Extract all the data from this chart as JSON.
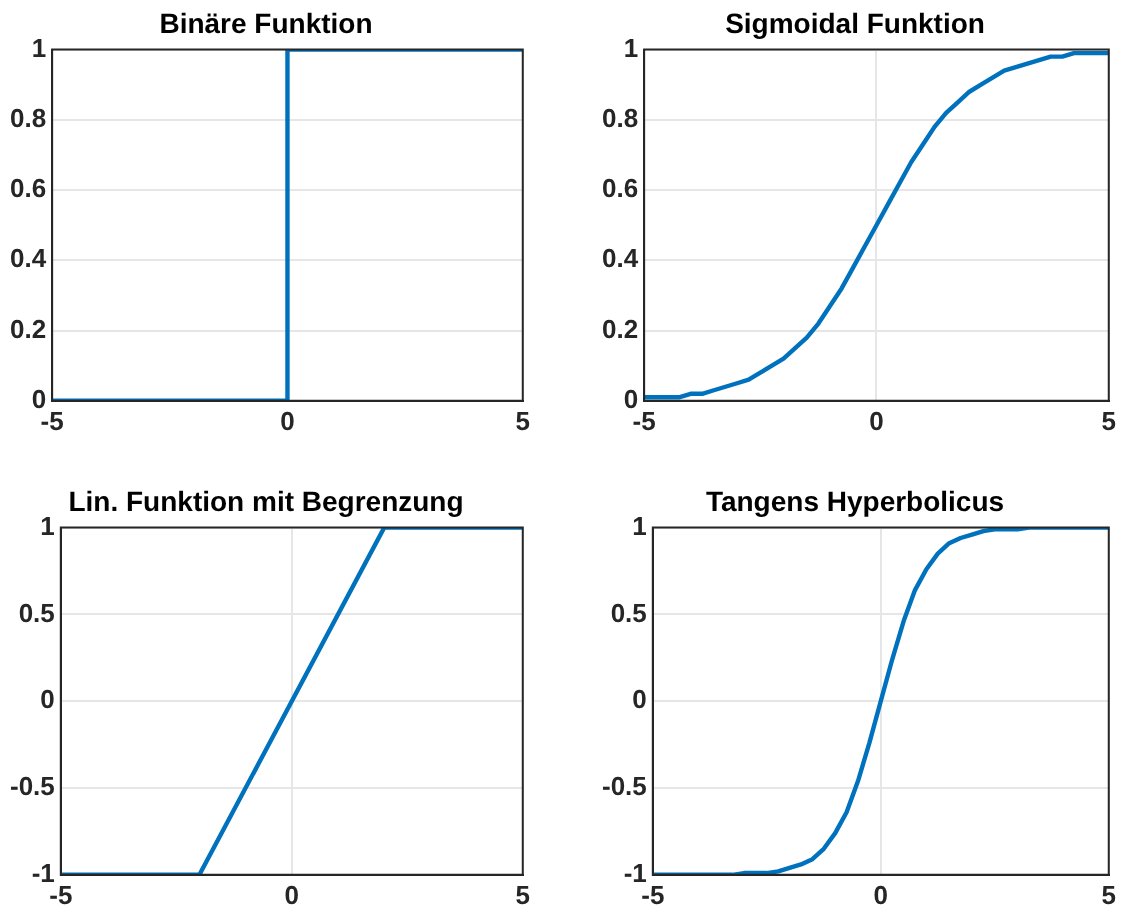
{
  "chart_data": [
    {
      "type": "line",
      "title": "Binäre Funktion",
      "x": [
        -5,
        0,
        0,
        5
      ],
      "series": [
        {
          "color": "#0072bd",
          "values": [
            0,
            0,
            1,
            1
          ]
        }
      ],
      "xlim": [
        -5,
        5
      ],
      "xticks": [
        -5,
        0,
        5
      ],
      "ylim": [
        0,
        1
      ],
      "yticks": [
        0,
        0.2,
        0.4,
        0.6,
        0.8,
        1
      ],
      "grid": true,
      "legend": false,
      "marker": "none"
    },
    {
      "type": "line",
      "title": "Sigmoidal Funktion",
      "x": [
        -5,
        -4.75,
        -4.5,
        -4.25,
        -4,
        -3.75,
        -3.5,
        -3.25,
        -3,
        -2.75,
        -2.5,
        -2.25,
        -2,
        -1.75,
        -1.5,
        -1.25,
        -1,
        -0.75,
        -0.5,
        -0.25,
        0,
        0.25,
        0.5,
        0.75,
        1,
        1.25,
        1.5,
        1.75,
        2,
        2.25,
        2.5,
        2.75,
        3,
        3.25,
        3.5,
        3.75,
        4,
        4.25,
        4.5,
        4.75,
        5
      ],
      "series": [
        {
          "color": "#0072bd",
          "values": [
            0.01,
            0.01,
            0.01,
            0.01,
            0.02,
            0.02,
            0.03,
            0.04,
            0.05,
            0.06,
            0.08,
            0.1,
            0.12,
            0.15,
            0.18,
            0.22,
            0.27,
            0.32,
            0.38,
            0.44,
            0.5,
            0.56,
            0.62,
            0.68,
            0.73,
            0.78,
            0.82,
            0.85,
            0.88,
            0.9,
            0.92,
            0.94,
            0.95,
            0.96,
            0.97,
            0.98,
            0.98,
            0.99,
            0.99,
            0.99,
            0.99
          ]
        }
      ],
      "xlim": [
        -5,
        5
      ],
      "xticks": [
        -5,
        0,
        5
      ],
      "ylim": [
        0,
        1
      ],
      "yticks": [
        0,
        0.2,
        0.4,
        0.6,
        0.8,
        1
      ],
      "grid": true,
      "legend": false,
      "marker": "none"
    },
    {
      "type": "line",
      "title": "Lin. Funktion mit Begrenzung",
      "x": [
        -5,
        -2,
        2,
        5
      ],
      "series": [
        {
          "color": "#0072bd",
          "values": [
            -1,
            -1,
            1,
            1
          ]
        }
      ],
      "xlim": [
        -5,
        5
      ],
      "xticks": [
        -5,
        0,
        5
      ],
      "ylim": [
        -1,
        1
      ],
      "yticks": [
        -1,
        -0.5,
        0,
        0.5,
        1
      ],
      "grid": true,
      "legend": false,
      "marker": "none"
    },
    {
      "type": "line",
      "title": "Tangens Hyperbolicus",
      "x": [
        -5,
        -4.75,
        -4.5,
        -4.25,
        -4,
        -3.75,
        -3.5,
        -3.25,
        -3,
        -2.75,
        -2.5,
        -2.25,
        -2,
        -1.75,
        -1.5,
        -1.25,
        -1,
        -0.75,
        -0.5,
        -0.25,
        0,
        0.25,
        0.5,
        0.75,
        1,
        1.25,
        1.5,
        1.75,
        2,
        2.25,
        2.5,
        2.75,
        3,
        3.25,
        3.5,
        3.75,
        4,
        4.25,
        4.5,
        4.75,
        5
      ],
      "series": [
        {
          "color": "#0072bd",
          "values": [
            -1,
            -1,
            -1,
            -1,
            -1,
            -1,
            -1,
            -1,
            -0.99,
            -0.99,
            -0.99,
            -0.98,
            -0.96,
            -0.94,
            -0.91,
            -0.85,
            -0.76,
            -0.64,
            -0.46,
            -0.24,
            0,
            0.24,
            0.46,
            0.64,
            0.76,
            0.85,
            0.91,
            0.94,
            0.96,
            0.98,
            0.99,
            0.99,
            0.99,
            1,
            1,
            1,
            1,
            1,
            1,
            1,
            1
          ]
        }
      ],
      "xlim": [
        -5,
        5
      ],
      "xticks": [
        -5,
        0,
        5
      ],
      "ylim": [
        -1,
        1
      ],
      "yticks": [
        -1,
        -0.5,
        0,
        0.5,
        1
      ],
      "grid": true,
      "legend": false,
      "marker": "none"
    }
  ]
}
